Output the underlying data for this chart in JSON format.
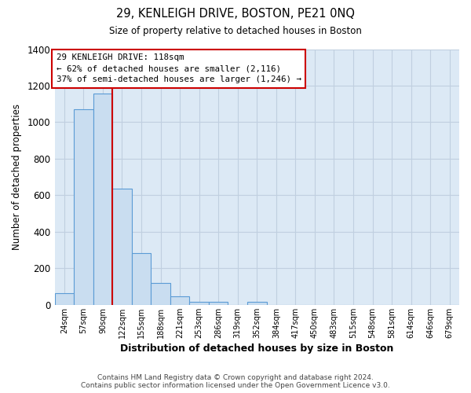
{
  "title": "29, KENLEIGH DRIVE, BOSTON, PE21 0NQ",
  "subtitle": "Size of property relative to detached houses in Boston",
  "xlabel": "Distribution of detached houses by size in Boston",
  "ylabel": "Number of detached properties",
  "bar_labels": [
    "24sqm",
    "57sqm",
    "90sqm",
    "122sqm",
    "155sqm",
    "188sqm",
    "221sqm",
    "253sqm",
    "286sqm",
    "319sqm",
    "352sqm",
    "384sqm",
    "417sqm",
    "450sqm",
    "483sqm",
    "515sqm",
    "548sqm",
    "581sqm",
    "614sqm",
    "646sqm",
    "679sqm"
  ],
  "bar_values": [
    65,
    1070,
    1155,
    638,
    285,
    120,
    48,
    18,
    18,
    0,
    15,
    0,
    0,
    0,
    0,
    0,
    0,
    0,
    0,
    0,
    0
  ],
  "bar_color": "#c9ddf0",
  "bar_edge_color": "#5b9bd5",
  "vline_x": 3,
  "vline_color": "#cc0000",
  "annotation_text": "29 KENLEIGH DRIVE: 118sqm\n← 62% of detached houses are smaller (2,116)\n37% of semi-detached houses are larger (1,246) →",
  "annotation_box_color": "#ffffff",
  "annotation_box_edge": "#cc0000",
  "ylim": [
    0,
    1400
  ],
  "yticks": [
    0,
    200,
    400,
    600,
    800,
    1000,
    1200,
    1400
  ],
  "footnote1": "Contains HM Land Registry data © Crown copyright and database right 2024.",
  "footnote2": "Contains public sector information licensed under the Open Government Licence v3.0.",
  "fig_background_color": "#ffffff",
  "plot_bg_color": "#dce9f5",
  "grid_color": "#c0cfe0"
}
